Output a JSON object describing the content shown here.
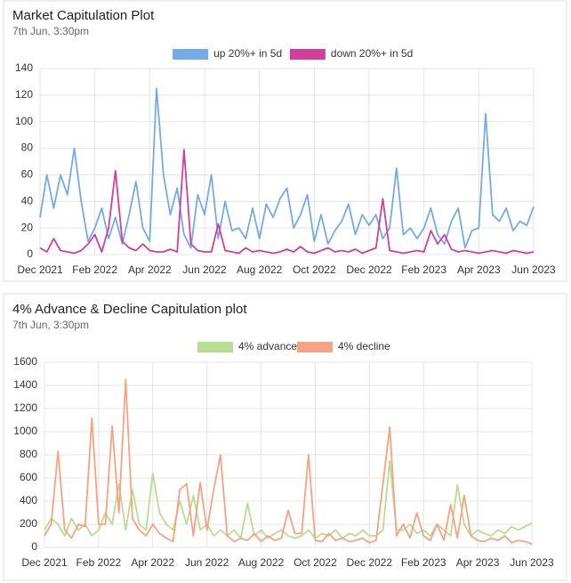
{
  "chart_data": [
    {
      "type": "line",
      "title": "Market Capitulation Plot",
      "subtitle": "7th Jun, 3:30pm",
      "categories": [
        "Dec 2021",
        null,
        null,
        null,
        null,
        null,
        null,
        null,
        "Feb 2022",
        null,
        null,
        null,
        null,
        null,
        null,
        null,
        "Apr 2022",
        null,
        null,
        null,
        null,
        null,
        null,
        null,
        "Jun 2022",
        null,
        null,
        null,
        null,
        null,
        null,
        null,
        "Aug 2022",
        null,
        null,
        null,
        null,
        null,
        null,
        null,
        "Oct 2022",
        null,
        null,
        null,
        null,
        null,
        null,
        null,
        "Dec 2022",
        null,
        null,
        null,
        null,
        null,
        null,
        null,
        "Feb 2023",
        null,
        null,
        null,
        null,
        null,
        null,
        null,
        "Apr 2023",
        null,
        null,
        null,
        null,
        null,
        null,
        null,
        "Jun 2023"
      ],
      "series": [
        {
          "name": "up 20%+ in 5d",
          "color": "#74abe6",
          "values": [
            28,
            60,
            35,
            60,
            45,
            80,
            40,
            10,
            20,
            35,
            12,
            28,
            8,
            30,
            55,
            20,
            10,
            125,
            60,
            30,
            50,
            15,
            5,
            45,
            30,
            60,
            12,
            40,
            18,
            20,
            12,
            35,
            12,
            38,
            28,
            42,
            50,
            20,
            30,
            45,
            10,
            30,
            8,
            18,
            25,
            38,
            15,
            30,
            22,
            30,
            12,
            20,
            65,
            15,
            20,
            12,
            20,
            35,
            15,
            8,
            25,
            35,
            5,
            18,
            20,
            106,
            30,
            25,
            35,
            18,
            25,
            22,
            36
          ]
        },
        {
          "name": "down 20%+ in 5d",
          "color": "#d0409a",
          "values": [
            5,
            2,
            12,
            3,
            2,
            1,
            3,
            8,
            15,
            2,
            20,
            63,
            10,
            5,
            3,
            8,
            3,
            2,
            2,
            4,
            2,
            79,
            8,
            3,
            2,
            2,
            23,
            3,
            2,
            1,
            5,
            2,
            3,
            2,
            1,
            2,
            4,
            2,
            6,
            2,
            1,
            3,
            5,
            2,
            3,
            2,
            4,
            1,
            3,
            5,
            42,
            3,
            2,
            1,
            2,
            3,
            2,
            18,
            8,
            15,
            4,
            2,
            3,
            2,
            1,
            2,
            3,
            2,
            1,
            3,
            2,
            1,
            2
          ]
        }
      ],
      "ylim": [
        0,
        140
      ],
      "yticks": [
        0,
        20,
        40,
        60,
        80,
        100,
        120,
        140
      ],
      "grid": true,
      "legend": "top"
    },
    {
      "type": "line",
      "title": "4% Advance & Decline Capitulation plot",
      "subtitle": "7th Jun, 3:30pm",
      "categories": [
        "Dec 2021",
        null,
        null,
        null,
        null,
        null,
        null,
        null,
        "Feb 2022",
        null,
        null,
        null,
        null,
        null,
        null,
        null,
        "Apr 2022",
        null,
        null,
        null,
        null,
        null,
        null,
        null,
        "Jun 2022",
        null,
        null,
        null,
        null,
        null,
        null,
        null,
        "Aug 2022",
        null,
        null,
        null,
        null,
        null,
        null,
        null,
        "Oct 2022",
        null,
        null,
        null,
        null,
        null,
        null,
        null,
        "Dec 2022",
        null,
        null,
        null,
        null,
        null,
        null,
        null,
        "Feb 2023",
        null,
        null,
        null,
        null,
        null,
        null,
        null,
        "Apr 2023",
        null,
        null,
        null,
        null,
        null,
        null,
        null,
        "Jun 2023"
      ],
      "series": [
        {
          "name": "4% advance",
          "color": "#b7dd92",
          "values": [
            150,
            250,
            200,
            100,
            250,
            150,
            200,
            100,
            150,
            300,
            200,
            550,
            150,
            500,
            200,
            150,
            640,
            300,
            200,
            150,
            400,
            200,
            450,
            150,
            200,
            100,
            150,
            100,
            150,
            80,
            380,
            100,
            150,
            80,
            120,
            150,
            100,
            80,
            100,
            150,
            80,
            120,
            100,
            150,
            80,
            120,
            100,
            150,
            100,
            100,
            150,
            750,
            150,
            150,
            200,
            120,
            150,
            100,
            200,
            150,
            100,
            540,
            200,
            100,
            150,
            120,
            100,
            150,
            120,
            180,
            150,
            180,
            210
          ]
        },
        {
          "name": "4% decline",
          "color": "#f7a283",
          "values": [
            100,
            200,
            830,
            150,
            80,
            200,
            180,
            1120,
            200,
            200,
            1050,
            300,
            1450,
            250,
            150,
            100,
            200,
            120,
            80,
            50,
            500,
            550,
            100,
            560,
            150,
            500,
            800,
            100,
            50,
            80,
            60,
            120,
            50,
            100,
            60,
            80,
            320,
            120,
            120,
            800,
            60,
            50,
            120,
            60,
            80,
            50,
            60,
            80,
            40,
            60,
            550,
            1040,
            100,
            200,
            80,
            300,
            100,
            60,
            200,
            60,
            370,
            80,
            450,
            100,
            60,
            50,
            80,
            60,
            100,
            40,
            60,
            50,
            30
          ]
        }
      ],
      "ylim": [
        0,
        1600
      ],
      "yticks": [
        0,
        200,
        400,
        600,
        800,
        1000,
        1200,
        1400,
        1600
      ],
      "grid": true,
      "legend": "top"
    }
  ]
}
